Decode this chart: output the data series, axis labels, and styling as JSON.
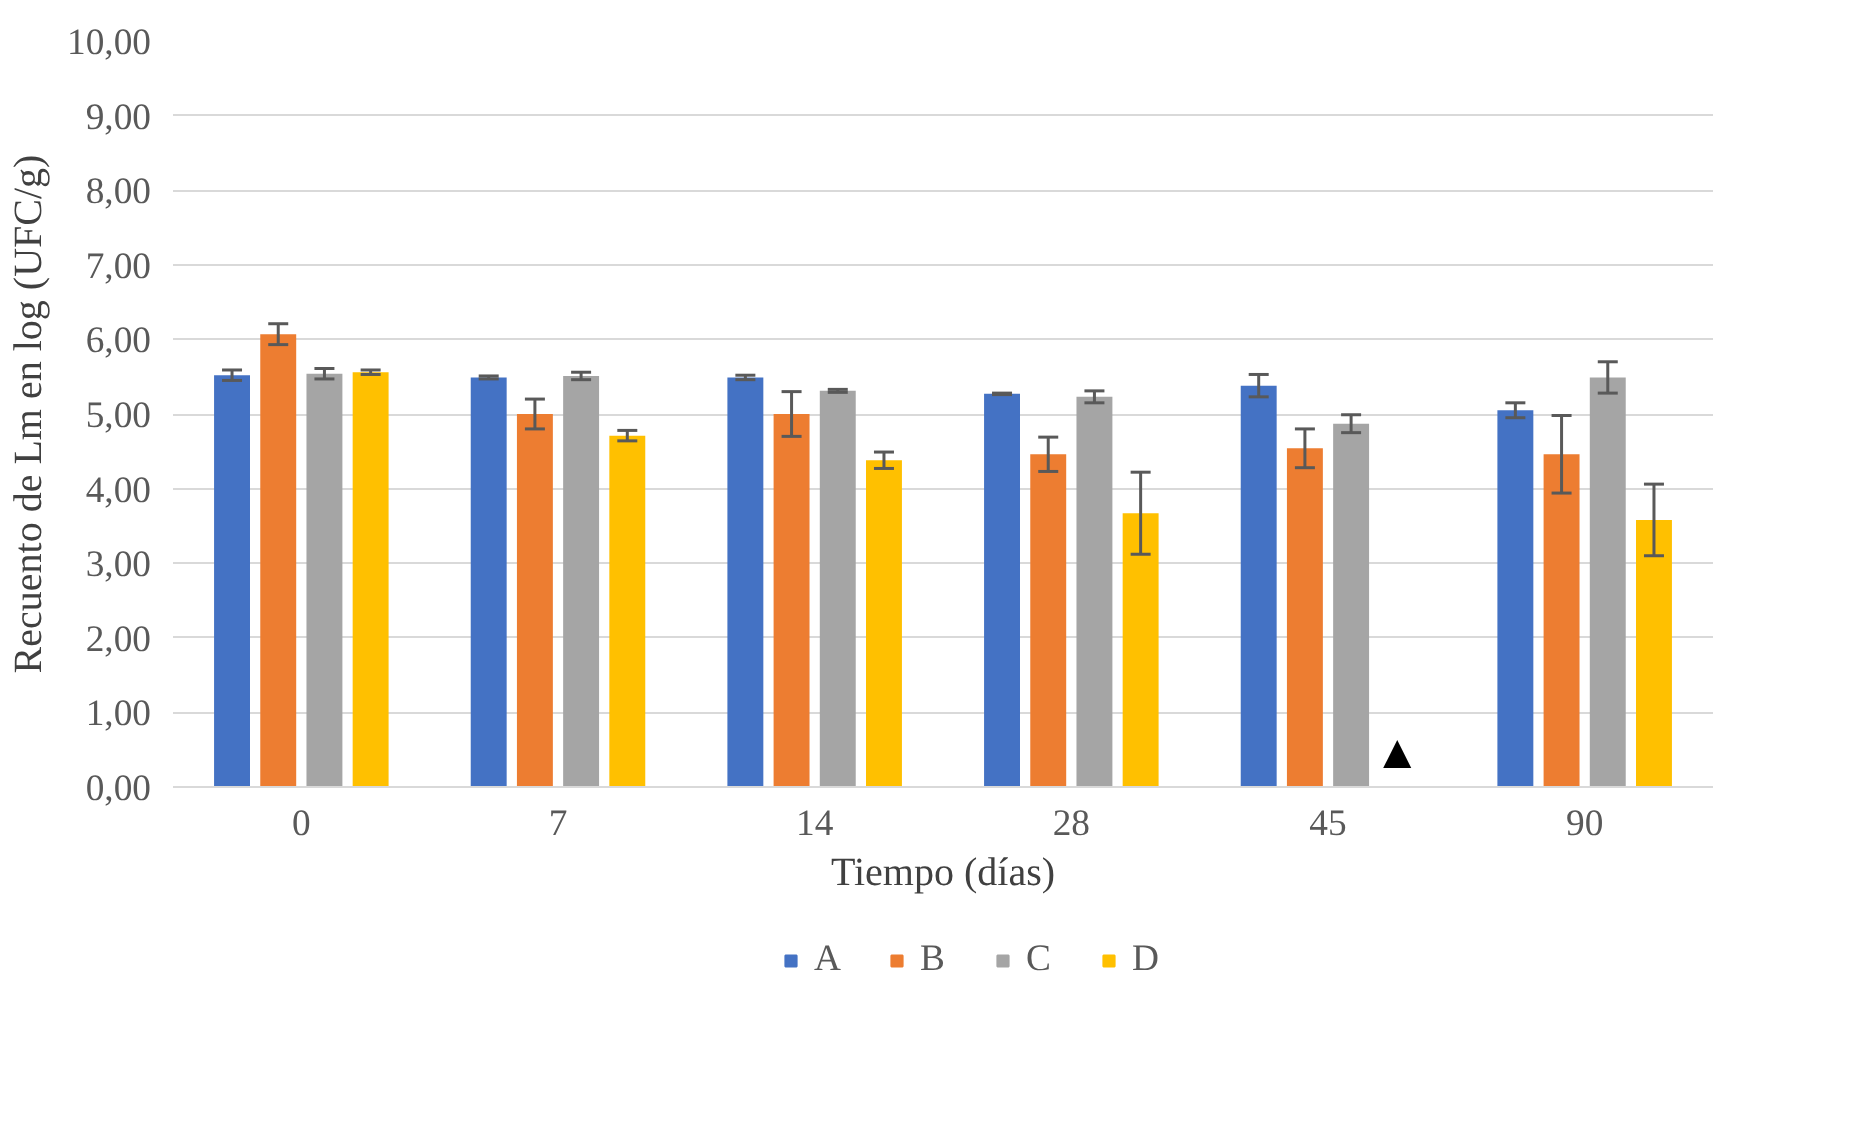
{
  "chart_data": {
    "type": "bar",
    "xlabel": "Tiempo (días)",
    "ylabel": "Recuento de Lm en log (UFC/g)",
    "categories": [
      "0",
      "7",
      "14",
      "28",
      "45",
      "90"
    ],
    "series": [
      {
        "name": "A",
        "color": "#4472c4",
        "values": [
          5.52,
          5.49,
          5.49,
          5.27,
          5.38,
          5.05
        ],
        "errors": [
          0.07,
          0.02,
          0.03,
          0.01,
          0.15,
          0.1
        ]
      },
      {
        "name": "B",
        "color": "#ed7d31",
        "values": [
          6.07,
          5.0,
          5.0,
          4.46,
          4.54,
          4.46
        ],
        "errors": [
          0.14,
          0.2,
          0.3,
          0.23,
          0.26,
          0.52
        ]
      },
      {
        "name": "C",
        "color": "#a5a5a5",
        "values": [
          5.54,
          5.51,
          5.31,
          5.23,
          4.87,
          5.49
        ],
        "errors": [
          0.07,
          0.05,
          0.02,
          0.08,
          0.12,
          0.21
        ]
      },
      {
        "name": "D",
        "color": "#ffc000",
        "values": [
          5.56,
          4.71,
          4.38,
          3.67,
          0,
          3.58
        ],
        "errors": [
          0.03,
          0.07,
          0.11,
          0.55,
          null,
          0.48
        ]
      }
    ],
    "annotations": [
      {
        "text": "▲",
        "x": "45",
        "y": 0.45
      }
    ],
    "ylim": [
      0,
      10
    ],
    "yticks": [
      {
        "value": 0,
        "label": "0,00"
      },
      {
        "value": 1,
        "label": "1,00"
      },
      {
        "value": 2,
        "label": "2,00"
      },
      {
        "value": 3,
        "label": "3,00"
      },
      {
        "value": 4,
        "label": "4,00"
      },
      {
        "value": 5,
        "label": "5,00"
      },
      {
        "value": 6,
        "label": "6,00"
      },
      {
        "value": 7,
        "label": "7,00"
      },
      {
        "value": 8,
        "label": "8,00"
      },
      {
        "value": 9,
        "label": "9,00"
      },
      {
        "value": 10,
        "label": "10,00"
      }
    ],
    "grid": "y",
    "legend": "bottom"
  }
}
